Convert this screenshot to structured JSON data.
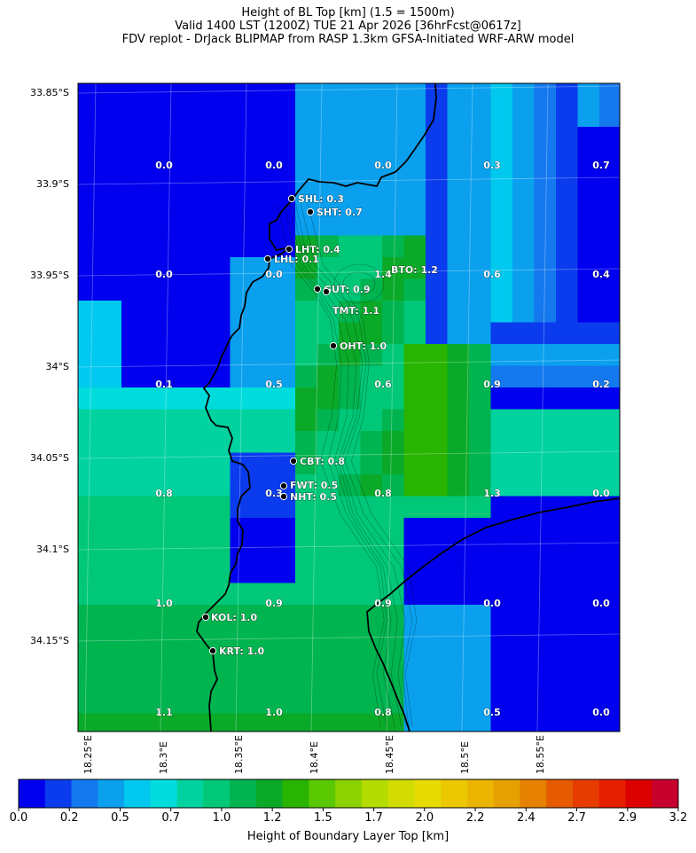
{
  "title": {
    "line1": "Height of BL Top [km] (1.5 = 1500m)",
    "line2": "Valid 1400 LST (1200Z) TUE 21 Apr 2026 [36hrFcst@0617z]",
    "line3": "FDV replot - DrJack BLIPMAP from RASP 1.3km GFSA-Initiated WRF-ARW model"
  },
  "axes": {
    "lat_ticks": [
      "33.85°S",
      "33.9°S",
      "33.95°S",
      "34°S",
      "34.05°S",
      "34.1°S",
      "34.15°S"
    ],
    "lon_ticks": [
      "18.25°E",
      "18.3°E",
      "18.35°E",
      "18.4°E",
      "18.45°E",
      "18.5°E",
      "18.55°E"
    ]
  },
  "grid_values": [
    [
      "0.0",
      "0.0",
      "0.0",
      "0.3",
      "0.7"
    ],
    [
      "0.0",
      "0.0",
      "1.4",
      "0.6",
      "0.4"
    ],
    [
      "0.1",
      "0.5",
      "0.6",
      "0.9",
      "0.2"
    ],
    [
      "0.8",
      "0.3",
      "0.8",
      "1.3",
      "0.0"
    ],
    [
      "1.0",
      "0.9",
      "0.9",
      "0.0",
      "0.0"
    ],
    [
      "1.1",
      "1.0",
      "0.8",
      "0.5",
      "0.0"
    ]
  ],
  "sites": [
    {
      "id": "SHL",
      "label": "SHL: 0.3",
      "value": 0.3
    },
    {
      "id": "SHT",
      "label": "SHT: 0.7",
      "value": 0.7
    },
    {
      "id": "LHT",
      "label": "LHT: 0.4",
      "value": 0.4
    },
    {
      "id": "LHL",
      "label": "LHL: 0.1",
      "value": 0.1
    },
    {
      "id": "BTO",
      "label": "BTO: 1.2",
      "value": 1.2
    },
    {
      "id": "GUT",
      "label": "GUT: 0.9",
      "value": 0.9
    },
    {
      "id": "TMT",
      "label": "TMT: 1.1",
      "value": 1.1
    },
    {
      "id": "OHT",
      "label": "OHT: 1.0",
      "value": 1.0
    },
    {
      "id": "CBT",
      "label": "CBT: 0.8",
      "value": 0.8
    },
    {
      "id": "FWT",
      "label": "FWT: 0.5",
      "value": 0.5
    },
    {
      "id": "NHT",
      "label": "NHT: 0.5",
      "value": 0.5
    },
    {
      "id": "KOL",
      "label": "KOL: 1.0",
      "value": 1.0
    },
    {
      "id": "KRT",
      "label": "KRT: 1.0",
      "value": 1.0
    }
  ],
  "colorbar": {
    "label": "Height of Boundary Layer Top [km]",
    "ticks": [
      "0.0",
      "0.2",
      "0.5",
      "0.7",
      "1.0",
      "1.2",
      "1.5",
      "1.7",
      "2.0",
      "2.2",
      "2.4",
      "2.7",
      "2.9",
      "3.2"
    ],
    "colors": [
      "#0000ee",
      "#0a3cee",
      "#1478ee",
      "#0aa0ee",
      "#00c8ee",
      "#00dcdc",
      "#00d2a0",
      "#00c878",
      "#00b450",
      "#0aaa28",
      "#28b400",
      "#5ac800",
      "#8cd200",
      "#b4dc00",
      "#d2dc00",
      "#e6dc00",
      "#ebc800",
      "#ebb400",
      "#e6a000",
      "#e68200",
      "#e65a00",
      "#e63c00",
      "#e61e00",
      "#dc0000",
      "#c8002d"
    ]
  }
}
